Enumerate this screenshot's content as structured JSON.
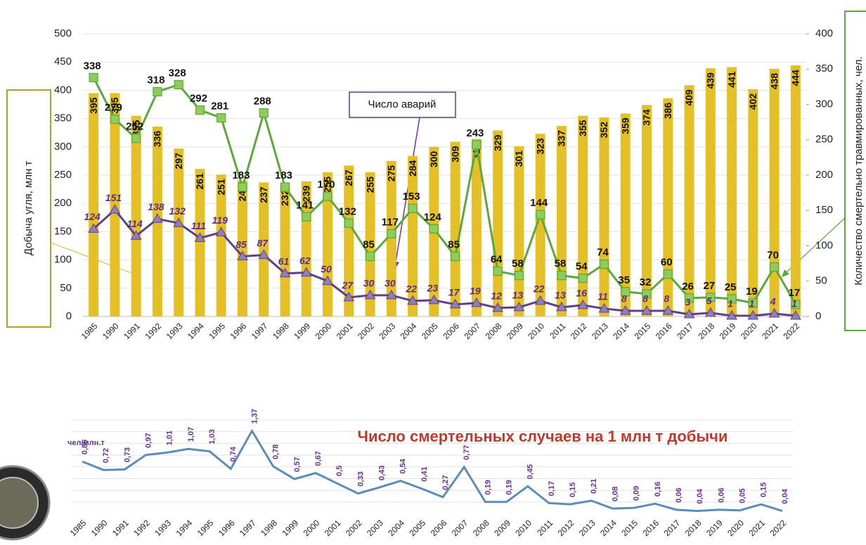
{
  "chart_data": [
    {
      "type": "bar",
      "ylabel": "Добыча угля, млн т",
      "y2label": "Количество смертельно травмированных, чел.",
      "categories": [
        "1985",
        "1990",
        "1991",
        "1992",
        "1993",
        "1994",
        "1995",
        "1996",
        "1997",
        "1998",
        "1999",
        "2000",
        "2001",
        "2002",
        "2003",
        "2004",
        "2005",
        "2006",
        "2007",
        "2008",
        "2009",
        "2010",
        "2011",
        "2012",
        "2013",
        "2014",
        "2015",
        "2016",
        "2017",
        "2018",
        "2019",
        "2020",
        "2021",
        "2022"
      ],
      "series": [
        {
          "type": "bar",
          "color": "#e5bf26",
          "values": [
            395,
            395,
            355,
            336,
            297,
            261,
            251,
            240,
            237,
            232,
            239,
            255,
            267,
            255,
            275,
            284,
            300,
            309,
            314,
            329,
            301,
            323,
            337,
            355,
            352,
            359,
            374,
            386,
            409,
            439,
            441,
            402,
            438,
            444
          ]
        },
        {
          "type": "line",
          "axis": "y2",
          "marker": "square",
          "color": "#5ba83b",
          "values": [
            338,
            279,
            252,
            318,
            328,
            292,
            281,
            183,
            288,
            183,
            141,
            170,
            132,
            85,
            117,
            153,
            124,
            85,
            243,
            64,
            58,
            144,
            58,
            54,
            74,
            35,
            32,
            60,
            26,
            27,
            25,
            19,
            70,
            17
          ]
        },
        {
          "type": "line",
          "axis": "y2",
          "marker": "triangle",
          "name": "Число аварий",
          "color": "#5d3f8c",
          "values": [
            124,
            151,
            114,
            138,
            132,
            111,
            119,
            85,
            87,
            61,
            62,
            50,
            27,
            30,
            30,
            22,
            23,
            17,
            19,
            12,
            13,
            22,
            13,
            16,
            11,
            8,
            8,
            8,
            3,
            5,
            1,
            1,
            4,
            1
          ]
        }
      ],
      "ylim": [
        0,
        500
      ],
      "yticks": [
        0,
        50,
        100,
        150,
        200,
        250,
        300,
        350,
        400,
        450,
        500
      ],
      "y2lim": [
        0,
        400
      ],
      "y2ticks": [
        0,
        50,
        100,
        150,
        200,
        250,
        300,
        350,
        400
      ],
      "grid": true
    },
    {
      "type": "line",
      "title": "Число смертельных случаев на 1 млн т добычи",
      "unit": "чел/млн.т",
      "categories": [
        "1985",
        "1990",
        "1991",
        "1992",
        "1993",
        "1994",
        "1995",
        "1996",
        "1997",
        "1998",
        "1999",
        "2000",
        "2001",
        "2002",
        "2003",
        "2004",
        "2005",
        "2006",
        "2007",
        "2008",
        "2009",
        "2010",
        "2011",
        "2012",
        "2013",
        "2014",
        "2015",
        "2016",
        "2017",
        "2018",
        "2019",
        "2020",
        "2021",
        "2022"
      ],
      "color": "#5b8db8",
      "values": [
        0.86,
        0.72,
        0.73,
        0.97,
        1.01,
        1.07,
        1.03,
        0.74,
        1.37,
        0.78,
        0.57,
        0.67,
        0.5,
        0.33,
        0.43,
        0.54,
        0.41,
        0.27,
        0.77,
        0.19,
        0.19,
        0.45,
        0.17,
        0.15,
        0.21,
        0.08,
        0.09,
        0.16,
        0.06,
        0.04,
        0.06,
        0.05,
        0.15,
        0.04
      ],
      "value_labels": [
        "0,86",
        "0,72",
        "0,73",
        "0,97",
        "1,01",
        "1,07",
        "1,03",
        "0,74",
        "1,37",
        "0,78",
        "0,57",
        "0,67",
        "0,5",
        "0,33",
        "0,43",
        "0,54",
        "0,41",
        "0,27",
        "0,77",
        "0,19",
        "0,19",
        "0,45",
        "0,17",
        "0,15",
        "0,21",
        "0,08",
        "0,09",
        "0,16",
        "0,06",
        "0,04",
        "0,06",
        "0,05",
        "0,15",
        "0,04"
      ],
      "ylim": [
        0,
        1.6
      ],
      "grid": true
    }
  ]
}
